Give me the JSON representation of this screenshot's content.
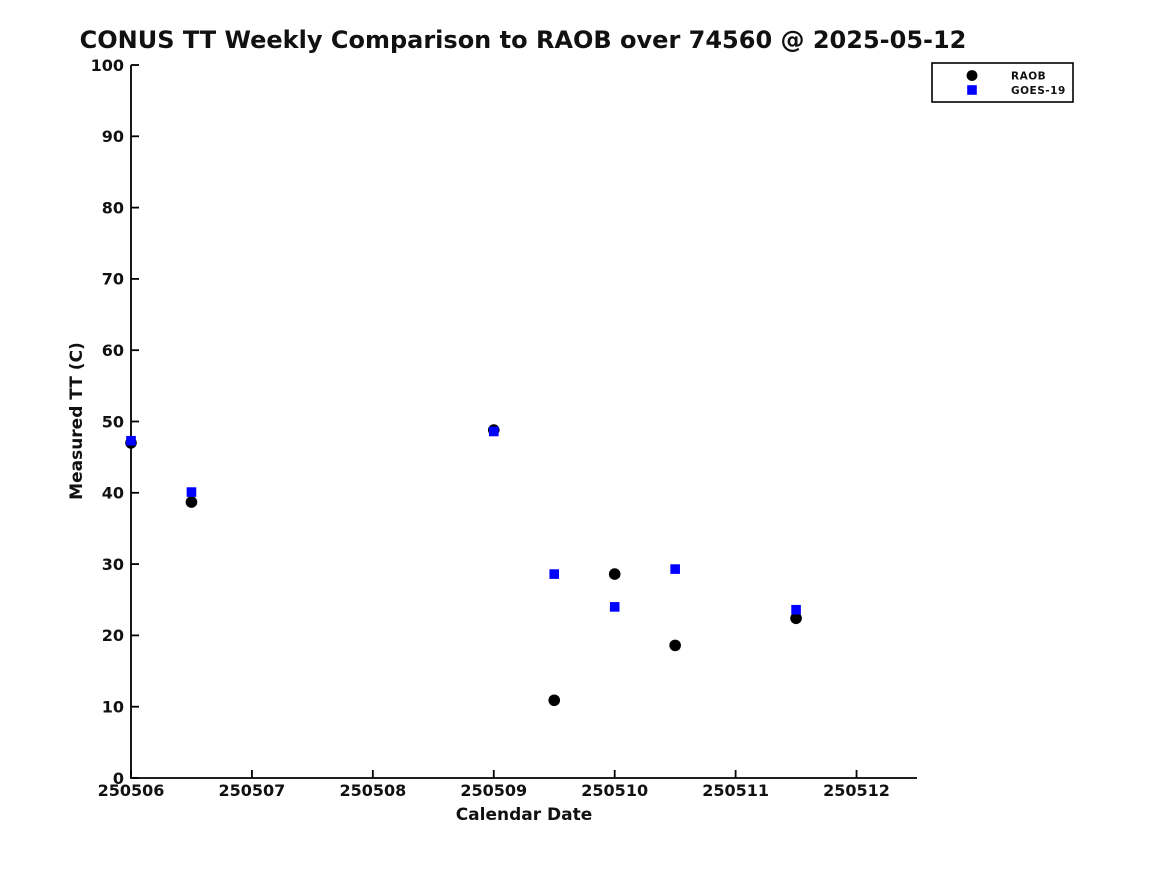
{
  "chart": {
    "title": "CONUS TT Weekly Comparison to RAOB over 74560 @ 2025-05-12",
    "xlabel": "Calendar Date",
    "ylabel": "Measured TT (C)"
  },
  "legend": {
    "items": [
      {
        "label": "RAOB",
        "marker": "circle",
        "color": "#000000"
      },
      {
        "label": "GOES-19",
        "marker": "square",
        "color": "#0000ff"
      }
    ]
  },
  "chart_data": {
    "type": "scatter",
    "title": "CONUS TT Weekly Comparison to RAOB over 74560 @ 2025-05-12",
    "xlabel": "Calendar Date",
    "ylabel": "Measured TT (C)",
    "xlim": [
      250506,
      250512.5
    ],
    "ylim": [
      0,
      100
    ],
    "x_ticks": [
      250506,
      250507,
      250508,
      250509,
      250510,
      250511,
      250512
    ],
    "y_ticks": [
      0,
      10,
      20,
      30,
      40,
      50,
      60,
      70,
      80,
      90,
      100
    ],
    "grid": false,
    "legend_position": "top-right-outside",
    "series": [
      {
        "name": "RAOB",
        "marker": "circle",
        "color": "#000000",
        "points": [
          [
            250506.0,
            47.0
          ],
          [
            250506.5,
            38.7
          ],
          [
            250509.0,
            48.8
          ],
          [
            250509.5,
            10.9
          ],
          [
            250510.0,
            28.6
          ],
          [
            250510.5,
            18.6
          ],
          [
            250511.5,
            22.4
          ]
        ]
      },
      {
        "name": "GOES-19",
        "marker": "square",
        "color": "#0000ff",
        "points": [
          [
            250506.0,
            47.3
          ],
          [
            250506.5,
            40.1
          ],
          [
            250509.0,
            48.6
          ],
          [
            250509.5,
            28.6
          ],
          [
            250510.0,
            24.0
          ],
          [
            250510.5,
            29.3
          ],
          [
            250511.5,
            23.6
          ]
        ]
      }
    ]
  },
  "colors": {
    "background": "#ffffff",
    "axis": "#000000",
    "raob": "#000000",
    "goes19": "#0000ff"
  }
}
